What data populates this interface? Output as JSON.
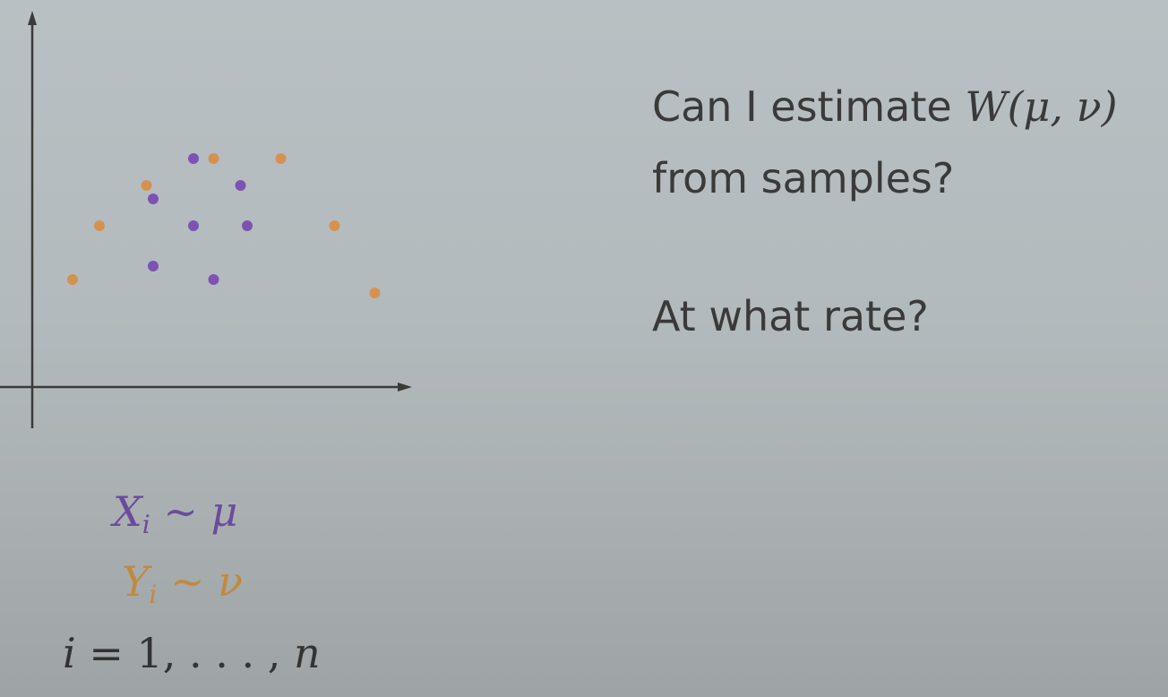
{
  "plot": {
    "colors": {
      "mu_samples": "#7e52b3",
      "nu_samples": "#d49250",
      "axis": "#3a3a3a"
    },
    "mu_points": [
      [
        4.8,
        6.8
      ],
      [
        3.6,
        5.6
      ],
      [
        6.2,
        6.0
      ],
      [
        4.8,
        4.8
      ],
      [
        6.4,
        4.8
      ],
      [
        3.6,
        3.6
      ],
      [
        5.4,
        3.2
      ]
    ],
    "nu_points": [
      [
        1.2,
        3.2
      ],
      [
        2.0,
        4.8
      ],
      [
        3.4,
        6.0
      ],
      [
        5.4,
        6.8
      ],
      [
        7.4,
        6.8
      ],
      [
        9.0,
        4.8
      ],
      [
        10.2,
        2.8
      ]
    ]
  },
  "question": {
    "line1_text": "Can I estimate ",
    "line1_math": "W(μ, ν)",
    "line2": "from samples?",
    "line3": "At what rate?"
  },
  "formulas": {
    "x_var": "X",
    "x_sub": "i",
    "x_rest": " ∼ μ",
    "y_var": "Y",
    "y_sub": "i",
    "y_rest": " ∼ ν",
    "i_var": "i",
    "i_eq": " = 1, . . . , ",
    "i_n": "n"
  }
}
